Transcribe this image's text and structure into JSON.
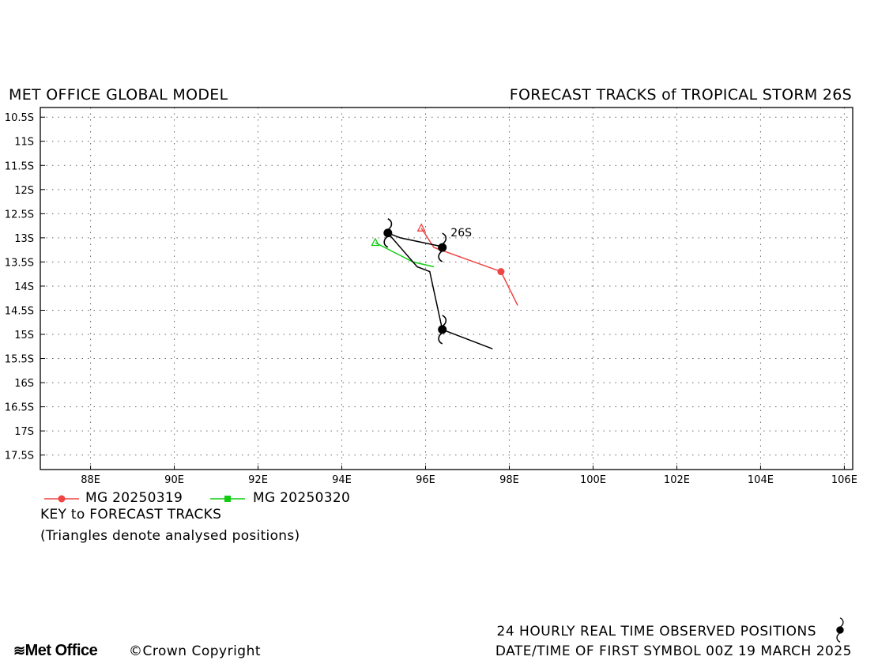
{
  "header": {
    "left_title": "MET OFFICE GLOBAL MODEL",
    "right_title": "FORECAST TRACKS of TROPICAL STORM 26S"
  },
  "legend": {
    "entries": [
      {
        "label": "MG 20250319",
        "color": "#ee4444",
        "marker": "circle"
      },
      {
        "label": "MG 20250320",
        "color": "#11cc11",
        "marker": "square"
      }
    ],
    "key_title": "KEY to FORECAST TRACKS",
    "key_note": "(Triangles denote analysed positions)"
  },
  "footer": {
    "logo_text": "Met Office",
    "copyright": "©Crown Copyright",
    "observed_label": "24 HOURLY REAL TIME OBSERVED POSITIONS",
    "first_symbol": "DATE/TIME OF FIRST SYMBOL 00Z 19 MARCH 2025"
  },
  "chart_data": {
    "type": "map",
    "x_axis": {
      "range": [
        86.8,
        106.2
      ],
      "ticks": [
        88,
        90,
        92,
        94,
        96,
        98,
        100,
        102,
        104,
        106
      ],
      "tick_labels": [
        "88E",
        "90E",
        "92E",
        "94E",
        "96E",
        "98E",
        "100E",
        "102E",
        "104E",
        "106E"
      ]
    },
    "y_axis": {
      "range": [
        -17.8,
        -10.3
      ],
      "ticks": [
        -10.5,
        -11,
        -11.5,
        -12,
        -12.5,
        -13,
        -13.5,
        -14,
        -14.5,
        -15,
        -15.5,
        -16,
        -16.5,
        -17,
        -17.5
      ],
      "tick_labels": [
        "10.5S",
        "11S",
        "11.5S",
        "12S",
        "12.5S",
        "13S",
        "13.5S",
        "14S",
        "14.5S",
        "15S",
        "15.5S",
        "16S",
        "16.5S",
        "17S",
        "17.5S"
      ]
    },
    "grid": true,
    "storm_label": {
      "text": "26S",
      "lon": 96.6,
      "lat": -12.97
    },
    "observed_track": {
      "color": "#000000",
      "points": [
        {
          "lon": 96.4,
          "lat": -13.2
        },
        {
          "lon": 96.5,
          "lat": -13.2
        },
        {
          "lon": 95.4,
          "lat": -13.0
        },
        {
          "lon": 95.1,
          "lat": -12.9
        },
        {
          "lon": 95.8,
          "lat": -13.6
        },
        {
          "lon": 96.1,
          "lat": -13.7
        },
        {
          "lon": 96.4,
          "lat": -14.9
        },
        {
          "lon": 97.6,
          "lat": -15.3
        }
      ],
      "storm_symbols": [
        {
          "lon": 95.1,
          "lat": -12.9
        },
        {
          "lon": 96.4,
          "lat": -13.2
        },
        {
          "lon": 96.4,
          "lat": -14.9
        }
      ]
    },
    "series": [
      {
        "name": "MG 20250319",
        "color": "#ee4444",
        "marker": "circle",
        "analysed": {
          "lon": 95.9,
          "lat": -12.8
        },
        "points": [
          {
            "lon": 95.9,
            "lat": -12.8
          },
          {
            "lon": 96.2,
            "lat": -13.2
          },
          {
            "lon": 97.8,
            "lat": -13.7
          },
          {
            "lon": 98.2,
            "lat": -14.4
          }
        ],
        "markers": [
          {
            "lon": 97.8,
            "lat": -13.7
          }
        ]
      },
      {
        "name": "MG 20250320",
        "color": "#11cc11",
        "marker": "square",
        "analysed": {
          "lon": 94.8,
          "lat": -13.1
        },
        "points": [
          {
            "lon": 94.8,
            "lat": -13.1
          },
          {
            "lon": 95.7,
            "lat": -13.5
          },
          {
            "lon": 96.2,
            "lat": -13.6
          }
        ],
        "markers": []
      }
    ]
  }
}
